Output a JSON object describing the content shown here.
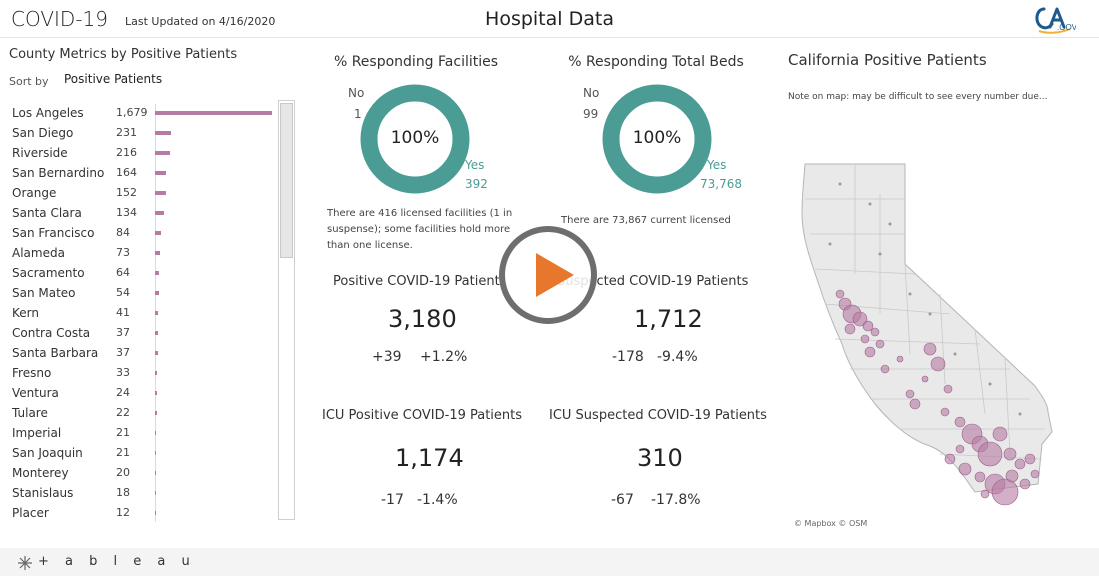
{
  "header": {
    "brand": "COVID-19",
    "updated": "Last Updated on 4/16/2020",
    "page_title": "Hospital Data",
    "logo_text": "CA.GOV"
  },
  "county_panel": {
    "title": "County Metrics by Positive Patients",
    "sort_label": "Sort by",
    "sort_value": "Positive Patients",
    "bar_color": "#b67ba4",
    "max_value": 1679,
    "rows": [
      {
        "county": "Los Angeles",
        "value": "1,679",
        "n": 1679
      },
      {
        "county": "San Diego",
        "value": "231",
        "n": 231
      },
      {
        "county": "Riverside",
        "value": "216",
        "n": 216
      },
      {
        "county": "San Bernardino",
        "value": "164",
        "n": 164
      },
      {
        "county": "Orange",
        "value": "152",
        "n": 152
      },
      {
        "county": "Santa Clara",
        "value": "134",
        "n": 134
      },
      {
        "county": "San Francisco",
        "value": "84",
        "n": 84
      },
      {
        "county": "Alameda",
        "value": "73",
        "n": 73
      },
      {
        "county": "Sacramento",
        "value": "64",
        "n": 64
      },
      {
        "county": "San Mateo",
        "value": "54",
        "n": 54
      },
      {
        "county": "Kern",
        "value": "41",
        "n": 41
      },
      {
        "county": "Contra Costa",
        "value": "37",
        "n": 37
      },
      {
        "county": "Santa Barbara",
        "value": "37",
        "n": 37
      },
      {
        "county": "Fresno",
        "value": "33",
        "n": 33
      },
      {
        "county": "Ventura",
        "value": "24",
        "n": 24
      },
      {
        "county": "Tulare",
        "value": "22",
        "n": 22
      },
      {
        "county": "Imperial",
        "value": "21",
        "n": 21
      },
      {
        "county": "San Joaquin",
        "value": "21",
        "n": 21
      },
      {
        "county": "Monterey",
        "value": "20",
        "n": 20
      },
      {
        "county": "Stanislaus",
        "value": "18",
        "n": 18
      },
      {
        "county": "Placer",
        "value": "12",
        "n": 12
      }
    ]
  },
  "facilities": {
    "title": "% Responding Facilities",
    "center": "100%",
    "no_label": "No",
    "no_value": "1",
    "yes_label": "Yes",
    "yes_value": "392",
    "note": "There are 416 licensed facilities (1 in suspense); some facilities hold more than one license."
  },
  "beds": {
    "title": "% Responding Total Beds",
    "center": "100%",
    "no_label": "No",
    "no_value": "99",
    "yes_label": "Yes",
    "yes_value": "73,768",
    "note": "There are 73,867 current licensed"
  },
  "donut_color": "#4a9c94",
  "positive": {
    "title": "Positive COVID-19 Patients",
    "value": "3,180",
    "delta_abs": "+39",
    "delta_pct": "+1.2%"
  },
  "suspected": {
    "title": "Suspected COVID-19 Patients",
    "value": "1,712",
    "delta_abs": "-178",
    "delta_pct": "-9.4%"
  },
  "icu_positive": {
    "title": "ICU Positive COVID-19 Patients",
    "value": "1,174",
    "delta_abs": "-17",
    "delta_pct": "-1.4%"
  },
  "icu_suspected": {
    "title": "ICU Suspected COVID-19 Patients",
    "value": "310",
    "delta_abs": "-67",
    "delta_pct": "-17.8%"
  },
  "map_panel": {
    "title": "California Positive Patients",
    "note": "Note on map: may be difficult to see every number due...",
    "attribution": "© Mapbox © OSM",
    "bubble_color": "#b67ba4"
  },
  "play_button": {
    "color": "#e8772e"
  },
  "footer": {
    "tableau": "+ a b l e a u"
  }
}
